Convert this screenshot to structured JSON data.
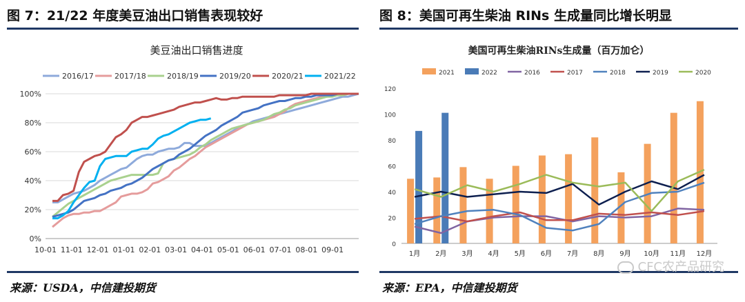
{
  "left_panel": {
    "figure_title": "图 7：21/22 年度美豆油出口销售表现较好",
    "source": "来源：USDA，中信建投期货"
  },
  "right_panel": {
    "figure_title": "图 8：美国可再生柴油 RINs 生成量同比增长明显",
    "source": "来源：EPA，中信建投期货",
    "watermark": "CFC农产品研究"
  },
  "chart_data": [
    {
      "type": "line",
      "title": "美豆油出口销售进度",
      "xlabel": "",
      "ylabel": "",
      "x_ticks": [
        "10-01",
        "11-01",
        "12-01",
        "01-01",
        "02-01",
        "03-01",
        "04-01",
        "05-01",
        "06-01",
        "07-01",
        "08-01",
        "09-01"
      ],
      "y_ticks": [
        "0%",
        "20%",
        "40%",
        "60%",
        "80%",
        "100%"
      ],
      "ylim": [
        0,
        100
      ],
      "legend_position": "top",
      "grid": "horizontal",
      "series": [
        {
          "name": "2016/17",
          "color": "#8eaadb",
          "values": [
            25,
            25,
            27,
            29,
            31,
            32,
            33,
            35,
            37,
            40,
            42,
            44,
            46,
            48,
            49,
            52,
            55,
            57,
            58,
            58,
            60,
            61,
            62,
            62,
            63,
            66,
            66,
            64,
            64,
            64,
            66,
            68,
            70,
            72,
            74,
            76,
            78,
            79,
            81,
            82,
            83,
            84,
            85,
            86,
            87,
            88,
            89,
            90,
            91,
            92,
            93,
            94,
            95,
            96,
            97,
            98,
            98,
            99,
            100
          ]
        },
        {
          "name": "2017/18",
          "color": "#e59c9c",
          "values": [
            8,
            11,
            14,
            16,
            17,
            17,
            18,
            18,
            19,
            19,
            21,
            23,
            25,
            29,
            30,
            31,
            31,
            32,
            34,
            38,
            39,
            41,
            43,
            47,
            49,
            52,
            55,
            57,
            60,
            63,
            65,
            67,
            69,
            71,
            73,
            75,
            77,
            79,
            80,
            81,
            82,
            83,
            84,
            86,
            88,
            91,
            93,
            94,
            95,
            96,
            97,
            98,
            98,
            99,
            99,
            99,
            100,
            100,
            100
          ]
        },
        {
          "name": "2018/19",
          "color": "#a9d18e",
          "values": [
            15,
            18,
            21,
            24,
            26,
            28,
            30,
            32,
            34,
            36,
            38,
            40,
            41,
            42,
            43,
            44,
            44,
            44,
            44,
            44,
            45,
            52,
            54,
            55,
            56,
            57,
            58,
            60,
            63,
            65,
            68,
            70,
            72,
            74,
            76,
            77,
            78,
            79,
            80,
            81,
            82,
            84,
            86,
            87,
            89,
            90,
            92,
            93,
            94,
            95,
            96,
            97,
            98,
            98,
            99,
            99,
            100,
            100,
            100
          ]
        },
        {
          "name": "2019/20",
          "color": "#4472c4",
          "values": [
            15,
            16,
            17,
            18,
            20,
            23,
            26,
            27,
            28,
            30,
            31,
            33,
            34,
            35,
            37,
            38,
            40,
            42,
            45,
            48,
            50,
            52,
            54,
            55,
            58,
            60,
            62,
            65,
            68,
            71,
            73,
            75,
            78,
            80,
            82,
            84,
            87,
            88,
            89,
            90,
            92,
            93,
            94,
            95,
            95,
            96,
            97,
            97,
            98,
            98,
            99,
            99,
            99,
            99,
            100,
            100,
            100,
            100,
            100
          ]
        },
        {
          "name": "2020/21",
          "color": "#c0504d",
          "values": [
            26,
            26,
            30,
            31,
            33,
            46,
            53,
            55,
            57,
            58,
            60,
            65,
            70,
            72,
            75,
            80,
            82,
            84,
            84,
            85,
            86,
            87,
            88,
            89,
            91,
            92,
            93,
            94,
            94,
            95,
            96,
            97,
            96,
            96,
            97,
            97,
            98,
            98,
            98,
            98,
            98,
            98,
            98,
            99,
            99,
            99,
            99,
            99,
            99,
            100,
            100,
            100,
            100,
            100,
            100,
            100,
            100,
            100,
            100
          ]
        },
        {
          "name": "2021/22",
          "color": "#00b0f0",
          "values": [
            14,
            14,
            16,
            19,
            25,
            30,
            35,
            39,
            40,
            50,
            55,
            56,
            57,
            57,
            57,
            60,
            61,
            62,
            62,
            65,
            69,
            71,
            72,
            74,
            76,
            78,
            80,
            81,
            82,
            82,
            83
          ]
        }
      ]
    },
    {
      "type": "bar",
      "title": "美国可再生柴油RINs生成量（百万加仑）",
      "xlabel": "",
      "ylabel": "",
      "categories": [
        "1月",
        "2月",
        "3月",
        "4月",
        "5月",
        "6月",
        "7月",
        "8月",
        "9月",
        "10月",
        "11月",
        "12月"
      ],
      "y_ticks": [
        "0",
        "20",
        "40",
        "60",
        "80",
        "100",
        "120"
      ],
      "ylim": [
        0,
        120
      ],
      "legend_position": "top",
      "grid": "none",
      "bar_series": [
        {
          "name": "2021",
          "color": "#f4a15d",
          "values": [
            50,
            51,
            59,
            50,
            60,
            68,
            69,
            82,
            55,
            77,
            101,
            110
          ]
        },
        {
          "name": "2022",
          "color": "#4a7bb7",
          "values": [
            87,
            101,
            null,
            null,
            null,
            null,
            null,
            null,
            null,
            null,
            null,
            null
          ]
        }
      ],
      "line_series": [
        {
          "name": "2016",
          "color": "#8064a2",
          "values": [
            13,
            8,
            17,
            20,
            21,
            21,
            17,
            21,
            20,
            21,
            27,
            26
          ]
        },
        {
          "name": "2017",
          "color": "#c0504d",
          "values": [
            19,
            21,
            17,
            21,
            24,
            18,
            18,
            23,
            22,
            24,
            22,
            25
          ]
        },
        {
          "name": "2018",
          "color": "#4f81bd",
          "values": [
            15,
            21,
            25,
            26,
            22,
            12,
            10,
            15,
            32,
            39,
            40,
            47
          ]
        },
        {
          "name": "2019",
          "color": "#0d1f4f",
          "values": [
            36,
            40,
            36,
            38,
            40,
            39,
            46,
            30,
            40,
            48,
            42,
            53
          ]
        },
        {
          "name": "2020",
          "color": "#9bbb59",
          "values": [
            42,
            36,
            45,
            40,
            46,
            53,
            47,
            44,
            47,
            25,
            48,
            57
          ]
        }
      ]
    }
  ]
}
